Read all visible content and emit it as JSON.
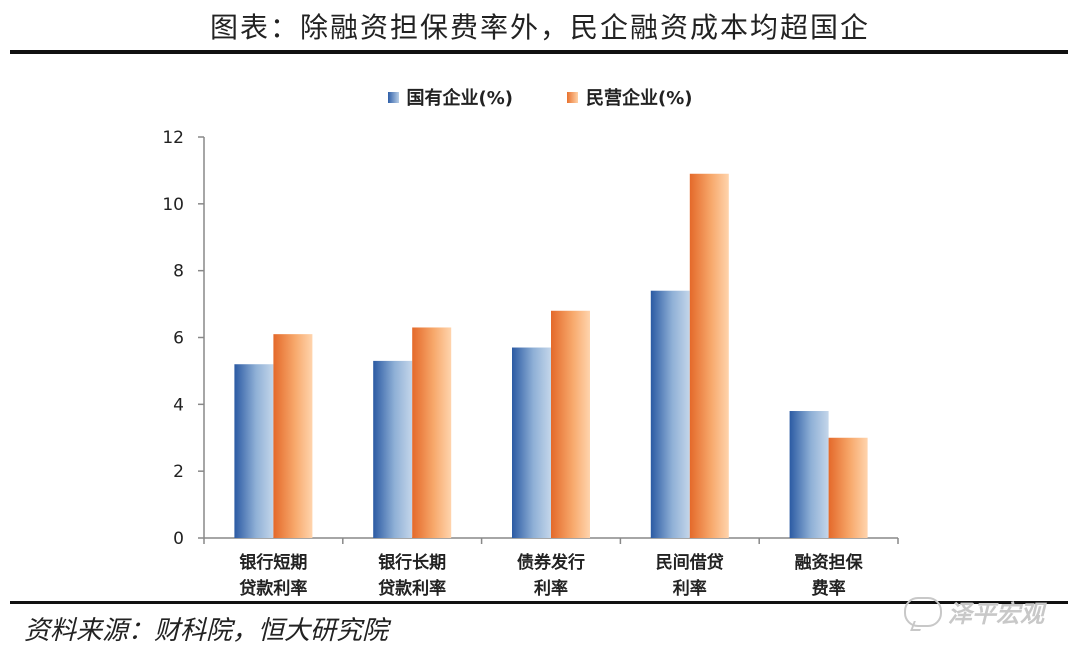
{
  "header": {
    "title": "图表：除融资担保费率外，民企融资成本均超国企"
  },
  "footer": {
    "source": "资料来源：财科院，恒大研究院",
    "watermark": "泽平宏观"
  },
  "chart_data": {
    "type": "bar",
    "categories": [
      "银行短期贷款利率",
      "银行长期贷款利率",
      "债券发行利率",
      "民间借贷利率",
      "融资担保费率"
    ],
    "category_lines": [
      [
        "银行短期",
        "贷款利率"
      ],
      [
        "银行长期",
        "贷款利率"
      ],
      [
        "债券发行",
        "利率"
      ],
      [
        "民间借贷",
        "利率"
      ],
      [
        "融资担保",
        "费率"
      ]
    ],
    "series": [
      {
        "name": "国有企业(%)",
        "values": [
          5.2,
          5.3,
          5.7,
          7.4,
          3.8
        ],
        "color": "#2f5fa8"
      },
      {
        "name": "民营企业(%)",
        "values": [
          6.1,
          6.3,
          6.8,
          10.9,
          3.0
        ],
        "color": "#e8722f"
      }
    ],
    "yticks": [
      "0",
      "2",
      "4",
      "6",
      "8",
      "10",
      "12"
    ],
    "ylim": [
      0,
      12
    ],
    "grid": false,
    "legend_position": "top-center"
  }
}
